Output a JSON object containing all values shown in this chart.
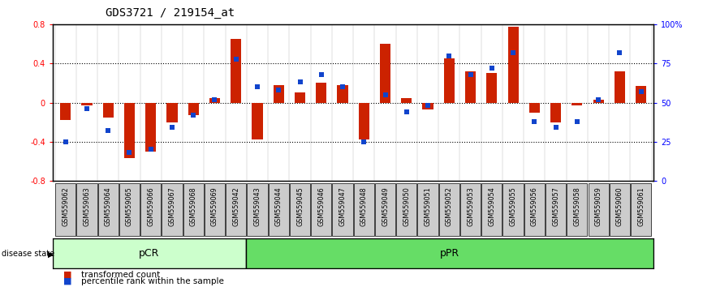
{
  "title": "GDS3721 / 219154_at",
  "samples": [
    "GSM559062",
    "GSM559063",
    "GSM559064",
    "GSM559065",
    "GSM559066",
    "GSM559067",
    "GSM559068",
    "GSM559069",
    "GSM559042",
    "GSM559043",
    "GSM559044",
    "GSM559045",
    "GSM559046",
    "GSM559047",
    "GSM559048",
    "GSM559049",
    "GSM559050",
    "GSM559051",
    "GSM559052",
    "GSM559053",
    "GSM559054",
    "GSM559055",
    "GSM559056",
    "GSM559057",
    "GSM559058",
    "GSM559059",
    "GSM559060",
    "GSM559061"
  ],
  "red_values": [
    -0.18,
    -0.03,
    -0.15,
    -0.57,
    -0.5,
    -0.2,
    -0.13,
    0.05,
    0.65,
    -0.38,
    0.18,
    0.1,
    0.2,
    0.18,
    -0.38,
    0.6,
    0.05,
    -0.07,
    0.45,
    0.32,
    0.3,
    0.78,
    -0.1,
    -0.2,
    -0.03,
    0.03,
    0.32,
    0.17
  ],
  "blue_values_pct": [
    25,
    46,
    32,
    18,
    20,
    34,
    42,
    52,
    78,
    60,
    58,
    63,
    68,
    60,
    25,
    55,
    44,
    48,
    80,
    68,
    72,
    82,
    38,
    34,
    38,
    52,
    82,
    57
  ],
  "pCR_indices": [
    0,
    8
  ],
  "pPR_indices": [
    9,
    27
  ],
  "pCR_count": 9,
  "pPR_count": 19,
  "ylim": [
    -0.8,
    0.8
  ],
  "yticks_left": [
    -0.8,
    -0.4,
    0.0,
    0.4,
    0.8
  ],
  "ytick_labels_left": [
    "-0.8",
    "-0.4",
    "0",
    "0.4",
    "0.8"
  ],
  "yticks_right_pct": [
    0,
    25,
    50,
    75,
    100
  ],
  "ytick_labels_right": [
    "0",
    "25",
    "50",
    "75",
    "100%"
  ],
  "bar_color": "#cc2200",
  "dot_color": "#1144cc",
  "pCR_color": "#ccffcc",
  "pPR_color": "#66dd66",
  "tick_bg_color": "#cccccc",
  "title_fontsize": 10,
  "tick_fontsize": 7,
  "label_fontsize": 8,
  "bar_width": 0.5
}
